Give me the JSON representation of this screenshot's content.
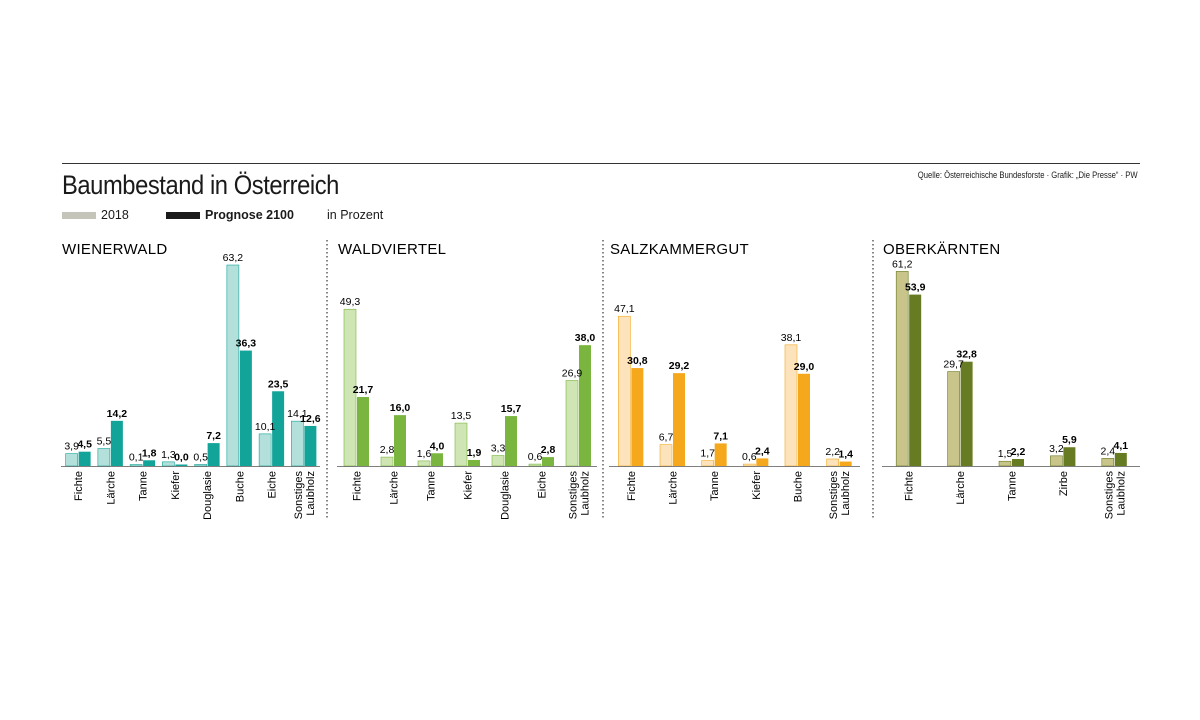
{
  "title": "Baumbestand in Österreich",
  "source": "Quelle: Österreichische Bundesforste · Grafik: „Die Presse“ · PW",
  "legend": {
    "series_2018": "2018",
    "series_2100": "Prognose 2100",
    "unit": "in Prozent"
  },
  "colors": {
    "legend_2018": "#c4c4b8",
    "legend_2100": "#1a1a1a"
  },
  "chart_data": [
    {
      "type": "bar",
      "title": "WIENERWALD",
      "categories": [
        "Fichte",
        "Lärche",
        "Tanne",
        "Kiefer",
        "Douglasie",
        "Buche",
        "Eiche",
        "Sonstiges Laubholz"
      ],
      "series": [
        {
          "name": "2018",
          "values": [
            3.9,
            5.5,
            0.1,
            1.3,
            0.5,
            63.2,
            10.1,
            14.1
          ],
          "color": "#b4e0dc"
        },
        {
          "name": "Prognose 2100",
          "values": [
            4.5,
            14.2,
            1.8,
            0.0,
            7.2,
            36.3,
            23.5,
            12.6
          ],
          "color": "#13a499"
        }
      ],
      "value_labels_2018": [
        "3,9",
        "5,5",
        "0,1",
        "1,3",
        "0,5",
        "63,2",
        "10,1",
        "14,1"
      ],
      "value_labels_2100": [
        "4,5",
        "14,2",
        "1,8",
        "0,0",
        "7,2",
        "36,3",
        "23,5",
        "12,6"
      ]
    },
    {
      "type": "bar",
      "title": "WALDVIERTEL",
      "categories": [
        "Fichte",
        "Lärche",
        "Tanne",
        "Kiefer",
        "Douglasie",
        "Eiche",
        "Sonstiges Laubholz"
      ],
      "series": [
        {
          "name": "2018",
          "values": [
            49.3,
            2.8,
            1.6,
            13.5,
            3.3,
            0.6,
            26.9
          ],
          "color": "#cfe5b3"
        },
        {
          "name": "Prognose 2100",
          "values": [
            21.7,
            16.0,
            4.0,
            1.9,
            15.7,
            2.8,
            38.0
          ],
          "color": "#7ab63f"
        }
      ],
      "value_labels_2018": [
        "49,3",
        "2,8",
        "1,6",
        "13,5",
        "3,3",
        "0,6",
        "26,9"
      ],
      "value_labels_2100": [
        "21,7",
        "16,0",
        "4,0",
        "1,9",
        "15,7",
        "2,8",
        "38,0"
      ]
    },
    {
      "type": "bar",
      "title": "SALZKAMMERGUT",
      "categories": [
        "Fichte",
        "Lärche",
        "Tanne",
        "Kiefer",
        "Buche",
        "Sonstiges Laubholz"
      ],
      "series": [
        {
          "name": "2018",
          "values": [
            47.1,
            6.7,
            1.7,
            0.6,
            38.1,
            2.2
          ],
          "color": "#fde3bb"
        },
        {
          "name": "Prognose 2100",
          "values": [
            30.8,
            29.2,
            7.1,
            2.4,
            29.0,
            1.4
          ],
          "color": "#f5a81c"
        }
      ],
      "value_labels_2018": [
        "47,1",
        "6,7",
        "1,7",
        "0,6",
        "38,1",
        "2,2"
      ],
      "value_labels_2100": [
        "30,8",
        "29,2",
        "7,1",
        "2,4",
        "29,0",
        "1,4"
      ]
    },
    {
      "type": "bar",
      "title": "OBERKÄRNTEN",
      "categories": [
        "Fichte",
        "Lärche",
        "Tanne",
        "Zirbe",
        "Sonstiges Laubholz"
      ],
      "series": [
        {
          "name": "2018",
          "values": [
            61.2,
            29.7,
            1.5,
            3.2,
            2.4
          ],
          "color": "#c8c48a"
        },
        {
          "name": "Prognose 2100",
          "values": [
            53.9,
            32.8,
            2.2,
            5.9,
            4.1
          ],
          "color": "#667b22"
        }
      ],
      "value_labels_2018": [
        "61,2",
        "29,7",
        "1,5",
        "3,2",
        "2,4"
      ],
      "value_labels_2100": [
        "53,9",
        "32,8",
        "2,2",
        "5,9",
        "4,1"
      ]
    }
  ]
}
